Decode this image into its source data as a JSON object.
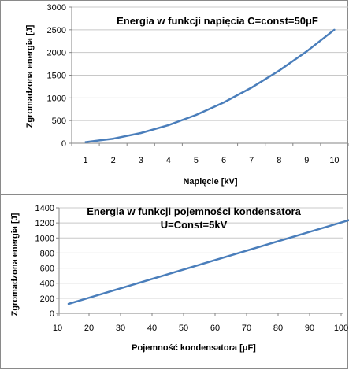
{
  "chart_data": [
    {
      "type": "line",
      "title": "Energia w funkcji napięcia C=const=50μF",
      "xlabel": "Napięcie [kV]",
      "ylabel": "Zgromadzona energia  [J]",
      "x": [
        1,
        2,
        3,
        4,
        5,
        6,
        7,
        8,
        9,
        10
      ],
      "series": [
        {
          "values": [
            25,
            100,
            225,
            400,
            625,
            900,
            1225,
            1600,
            2025,
            2500
          ]
        }
      ],
      "xticks": [
        "1",
        "2",
        "3",
        "4",
        "5",
        "6",
        "7",
        "8",
        "9",
        "10"
      ],
      "yticks": [
        "0",
        "500",
        "1000",
        "1500",
        "2000",
        "2500",
        "3000"
      ],
      "ylim": [
        0,
        3000
      ],
      "grid": true,
      "legend": "none",
      "line_color": "#4a7ebb"
    },
    {
      "type": "line",
      "title_lines": [
        "Energia w funkcji pojemności kondensatora",
        "U=Const=5kV"
      ],
      "xlabel": "Pojemność kondensatora  [μF]",
      "ylabel": "Zgromadzona energia  [J]",
      "x": [
        10,
        100
      ],
      "series": [
        {
          "values": [
            125,
            1250
          ]
        }
      ],
      "xticks": [
        "10",
        "20",
        "30",
        "40",
        "50",
        "60",
        "70",
        "80",
        "90",
        "100"
      ],
      "yticks": [
        "0",
        "200",
        "400",
        "600",
        "800",
        "1000",
        "1200",
        "1400"
      ],
      "xlim": [
        10,
        100
      ],
      "ylim": [
        0,
        1400
      ],
      "grid": true,
      "legend": "none",
      "line_color": "#4a7ebb"
    }
  ]
}
